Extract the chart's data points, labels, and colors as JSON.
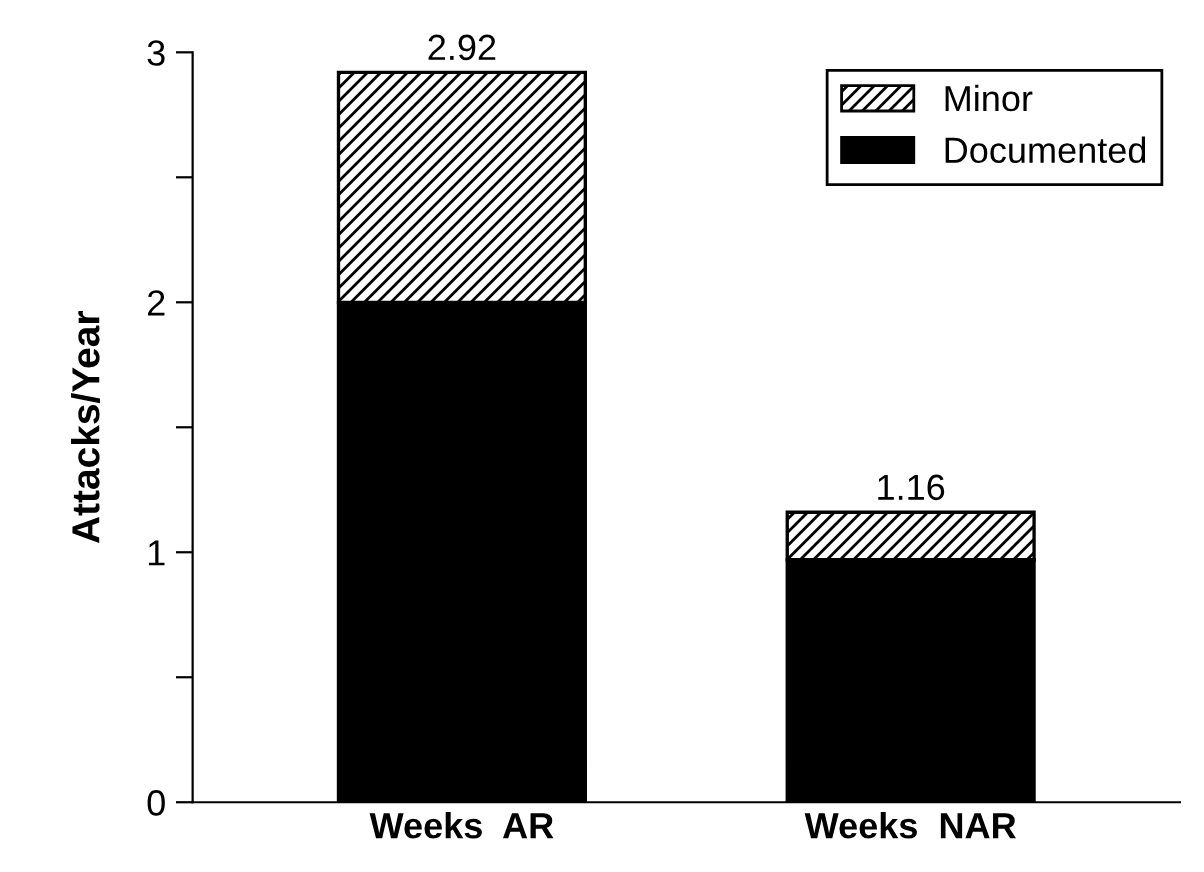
{
  "chart_data": {
    "type": "bar",
    "ylabel": "Attacks/Year",
    "categories": [
      "Weeks  AR",
      "Weeks  NAR"
    ],
    "stacked": true,
    "series": [
      {
        "name": "Documented",
        "color": "#000000",
        "values": [
          2.0,
          0.97
        ]
      },
      {
        "name": "Minor",
        "color": "#000000",
        "values": [
          0.92,
          0.19
        ]
      }
    ],
    "totals": [
      "2.92",
      "1.16"
    ],
    "ylim": [
      0,
      3
    ],
    "yticks": [
      0,
      {
        "value": 0.5,
        "label": null
      },
      1,
      {
        "value": 1.5,
        "label": null
      },
      2,
      {
        "value": 2.5,
        "label": null
      },
      3
    ],
    "grid": false,
    "legend": "top right"
  }
}
